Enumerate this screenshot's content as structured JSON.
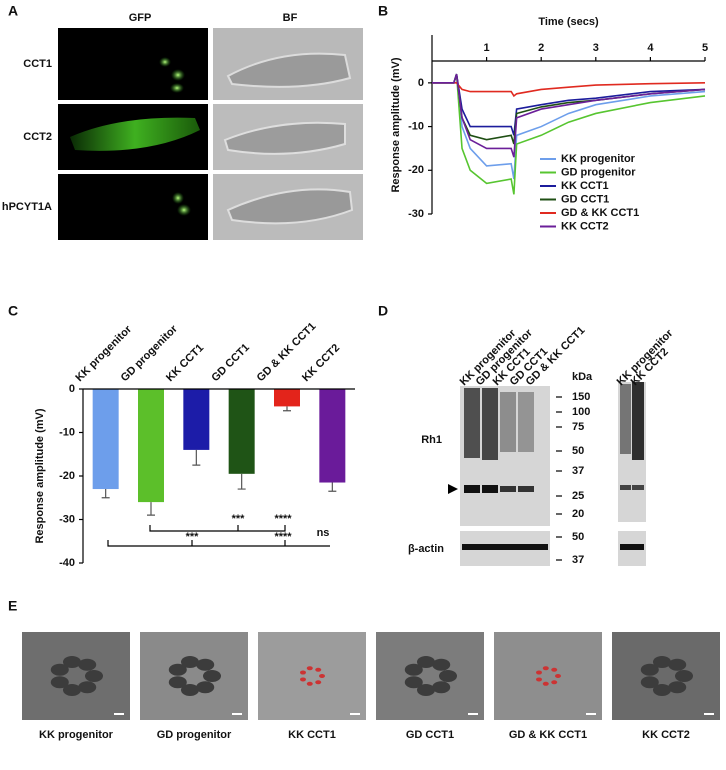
{
  "panel_labels": [
    "A",
    "B",
    "C",
    "D",
    "E"
  ],
  "panel_a": {
    "columns": [
      "GFP",
      "BF"
    ],
    "rows": [
      "CCT1",
      "CCT2",
      "hPCYT1A"
    ]
  },
  "chart_data": [
    {
      "type": "line",
      "x_label": "Time (secs)",
      "y_label": "Response amplitude (mV)",
      "x": [
        0,
        0.4,
        0.45,
        0.55,
        0.7,
        1.0,
        1.45,
        1.5,
        1.55,
        2,
        2.5,
        3,
        4,
        5
      ],
      "xlim": [
        0,
        5
      ],
      "xticks": [
        1,
        2,
        3,
        4,
        5
      ],
      "ylim": [
        -30,
        5
      ],
      "yticks": [
        0,
        -10,
        -20,
        -30
      ],
      "series": [
        {
          "name": "KK progenitor",
          "color": "#6d9eeb",
          "values": [
            0,
            0,
            2,
            -10,
            -15,
            -19,
            -18.5,
            -22,
            -12,
            -10,
            -7,
            -5,
            -3,
            -2
          ]
        },
        {
          "name": "GD progenitor",
          "color": "#57c530",
          "values": [
            0,
            0,
            2,
            -15,
            -20,
            -23,
            -22,
            -25.5,
            -14,
            -12,
            -9,
            -7,
            -4.5,
            -3
          ]
        },
        {
          "name": "KK CCT1",
          "color": "#1c1c9c",
          "values": [
            0,
            0,
            2,
            -6,
            -10,
            -10,
            -10,
            -12,
            -6,
            -5,
            -4,
            -3.5,
            -2,
            -1.5
          ]
        },
        {
          "name": "GD CCT1",
          "color": "#1f4f14",
          "values": [
            0,
            0,
            2,
            -8,
            -12,
            -13,
            -12,
            -14,
            -7,
            -5.5,
            -4.5,
            -4,
            -2.5,
            -1.5
          ]
        },
        {
          "name": "GD & KK CCT1",
          "color": "#e02a20",
          "values": [
            0,
            0,
            0,
            -1.5,
            -2,
            -2,
            -2,
            -3,
            -2.5,
            -1.5,
            -1,
            -0.5,
            -0.2,
            0
          ]
        },
        {
          "name": "KK CCT2",
          "color": "#6b1f99",
          "values": [
            0,
            0,
            2,
            -8,
            -13,
            -15,
            -15,
            -17,
            -8,
            -6,
            -5,
            -4,
            -2.5,
            -1.5
          ]
        }
      ]
    },
    {
      "type": "bar",
      "y_label": "Response amplitude (mV)",
      "categories": [
        "KK progenitor",
        "GD progenitor",
        "KK CCT1",
        "GD CCT1",
        "GD & KK CCT1",
        "KK CCT2"
      ],
      "values": [
        -23,
        -26,
        -14,
        -19.5,
        -4,
        -21.5
      ],
      "errors": [
        2,
        3,
        3.5,
        3.5,
        1,
        2
      ],
      "colors": [
        "#6d9eeb",
        "#5cbf2a",
        "#1c1ca8",
        "#1f5416",
        "#e3241b",
        "#6a1b9a"
      ],
      "ylim": [
        -40,
        0
      ],
      "yticks": [
        0,
        -10,
        -20,
        -30,
        -40
      ],
      "annotations": [
        "***",
        "****",
        "***",
        "****",
        "ns"
      ]
    }
  ],
  "panel_d": {
    "lanes_left": [
      "KK progenitor",
      "GD progenitor",
      "KK CCT1",
      "GD CCT1",
      "GD & KK CCT1"
    ],
    "lanes_right": [
      "KK progenitor",
      "KK CCT2"
    ],
    "unit": "kDa",
    "markers": [
      "150",
      "100",
      "75",
      "50",
      "37",
      "25",
      "20"
    ],
    "actin_markers": [
      "50",
      "37"
    ],
    "rows": [
      "Rh1",
      "β-actin"
    ]
  },
  "panel_e": {
    "labels": [
      "KK progenitor",
      "GD progenitor",
      "KK CCT1",
      "GD CCT1",
      "GD & KK CCT1",
      "KK CCT2"
    ]
  }
}
